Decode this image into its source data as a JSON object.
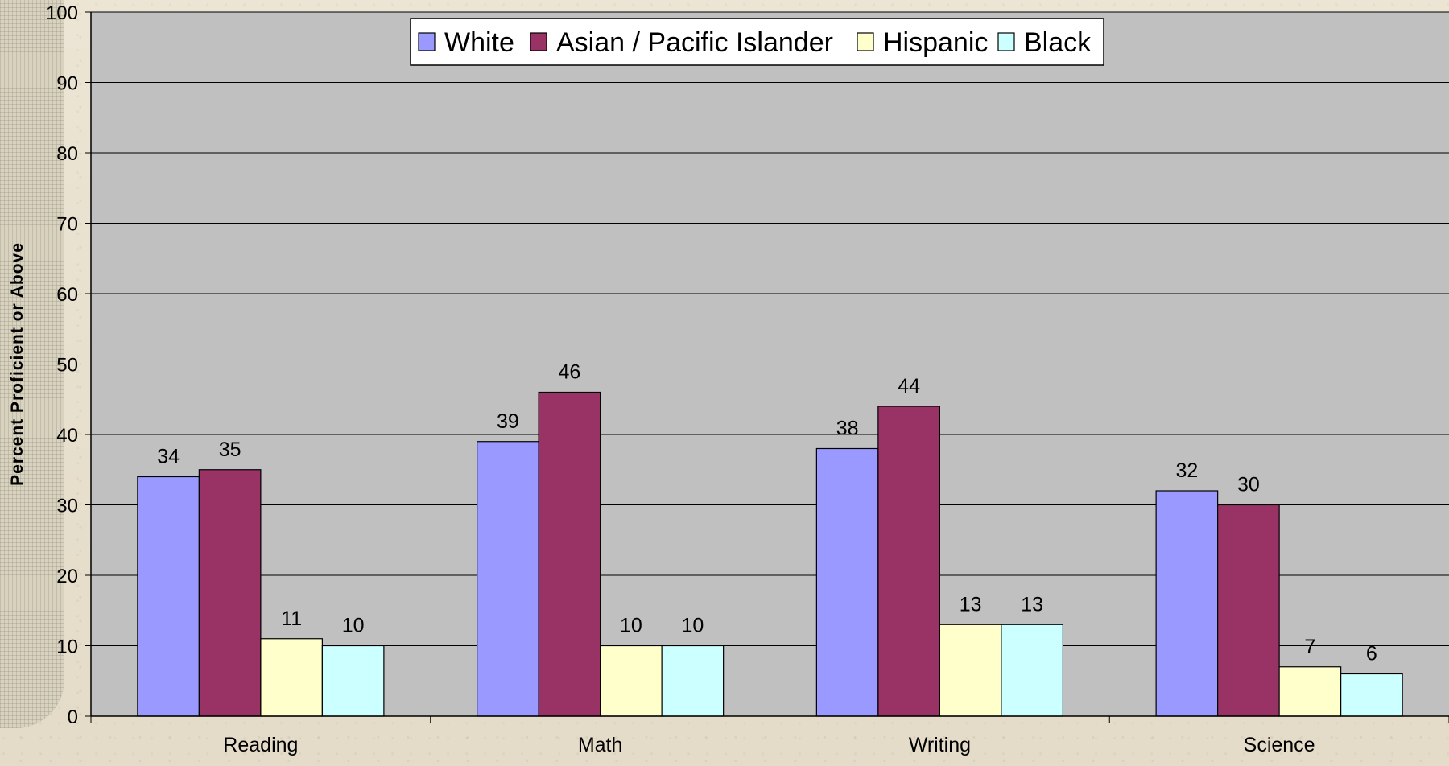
{
  "chart_data": {
    "type": "bar",
    "categories": [
      "Reading",
      "Math",
      "Writing",
      "Science"
    ],
    "series": [
      {
        "name": "White",
        "values": [
          34,
          39,
          38,
          32
        ],
        "color": "#9999ff"
      },
      {
        "name": "Asian / Pacific Islander",
        "values": [
          35,
          46,
          44,
          30
        ],
        "color": "#993366"
      },
      {
        "name": "Hispanic",
        "values": [
          11,
          10,
          13,
          7
        ],
        "color": "#ffffcc"
      },
      {
        "name": "Black",
        "values": [
          10,
          10,
          13,
          6
        ],
        "color": "#ccffff"
      }
    ],
    "title": "",
    "xlabel": "",
    "ylabel": "Percent Proficient or Above",
    "ylim": [
      0,
      100
    ],
    "yticks": [
      0,
      10,
      20,
      30,
      40,
      50,
      60,
      70,
      80,
      90,
      100
    ],
    "grid": true,
    "legend_position": "top-center",
    "plot_background": "#c0c0c0"
  }
}
